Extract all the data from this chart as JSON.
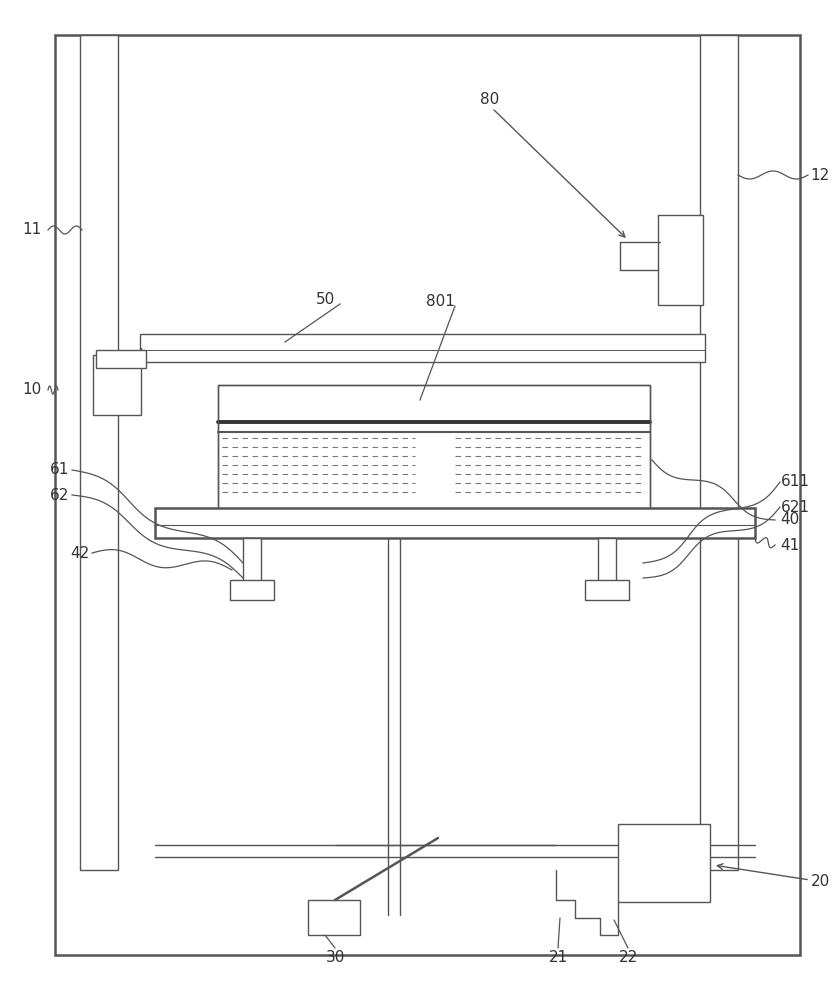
{
  "bg_color": "#ffffff",
  "line_color": "#555555",
  "lw": 1.0,
  "lw2": 1.8,
  "fig_width": 8.38,
  "fig_height": 10.0
}
